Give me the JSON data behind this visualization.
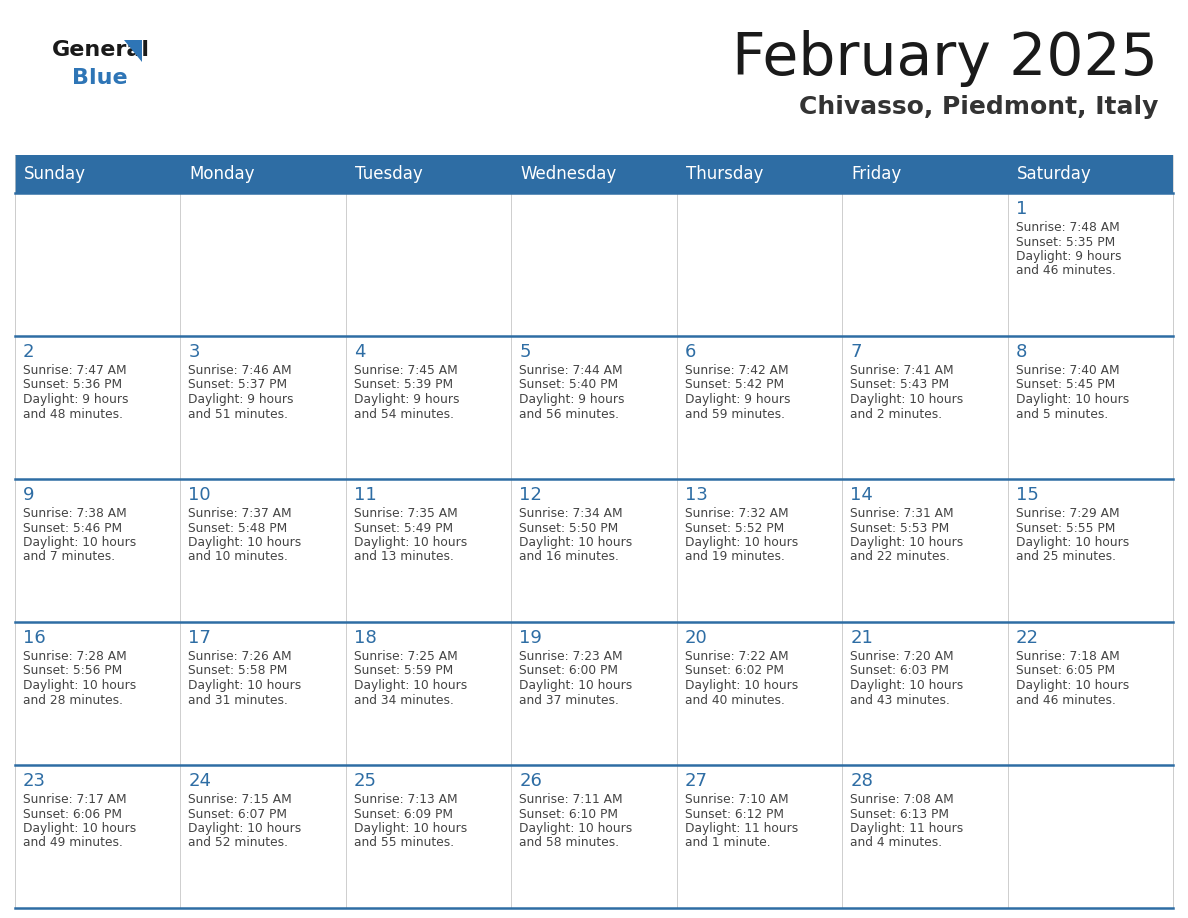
{
  "title": "February 2025",
  "subtitle": "Chivasso, Piedmont, Italy",
  "days_of_week": [
    "Sunday",
    "Monday",
    "Tuesday",
    "Wednesday",
    "Thursday",
    "Friday",
    "Saturday"
  ],
  "header_bg": "#2E6DA4",
  "header_text": "#FFFFFF",
  "cell_bg": "#F2F2F2",
  "border_color": "#2E6DA4",
  "day_num_color": "#2E6DA4",
  "cell_text_color": "#444444",
  "title_color": "#1a1a1a",
  "subtitle_color": "#333333",
  "weeks": [
    [
      {
        "day": null
      },
      {
        "day": null
      },
      {
        "day": null
      },
      {
        "day": null
      },
      {
        "day": null
      },
      {
        "day": null
      },
      {
        "day": 1,
        "sunrise": "7:48 AM",
        "sunset": "5:35 PM",
        "daylight": "9 hours and 46 minutes."
      }
    ],
    [
      {
        "day": 2,
        "sunrise": "7:47 AM",
        "sunset": "5:36 PM",
        "daylight": "9 hours and 48 minutes."
      },
      {
        "day": 3,
        "sunrise": "7:46 AM",
        "sunset": "5:37 PM",
        "daylight": "9 hours and 51 minutes."
      },
      {
        "day": 4,
        "sunrise": "7:45 AM",
        "sunset": "5:39 PM",
        "daylight": "9 hours and 54 minutes."
      },
      {
        "day": 5,
        "sunrise": "7:44 AM",
        "sunset": "5:40 PM",
        "daylight": "9 hours and 56 minutes."
      },
      {
        "day": 6,
        "sunrise": "7:42 AM",
        "sunset": "5:42 PM",
        "daylight": "9 hours and 59 minutes."
      },
      {
        "day": 7,
        "sunrise": "7:41 AM",
        "sunset": "5:43 PM",
        "daylight": "10 hours and 2 minutes."
      },
      {
        "day": 8,
        "sunrise": "7:40 AM",
        "sunset": "5:45 PM",
        "daylight": "10 hours and 5 minutes."
      }
    ],
    [
      {
        "day": 9,
        "sunrise": "7:38 AM",
        "sunset": "5:46 PM",
        "daylight": "10 hours and 7 minutes."
      },
      {
        "day": 10,
        "sunrise": "7:37 AM",
        "sunset": "5:48 PM",
        "daylight": "10 hours and 10 minutes."
      },
      {
        "day": 11,
        "sunrise": "7:35 AM",
        "sunset": "5:49 PM",
        "daylight": "10 hours and 13 minutes."
      },
      {
        "day": 12,
        "sunrise": "7:34 AM",
        "sunset": "5:50 PM",
        "daylight": "10 hours and 16 minutes."
      },
      {
        "day": 13,
        "sunrise": "7:32 AM",
        "sunset": "5:52 PM",
        "daylight": "10 hours and 19 minutes."
      },
      {
        "day": 14,
        "sunrise": "7:31 AM",
        "sunset": "5:53 PM",
        "daylight": "10 hours and 22 minutes."
      },
      {
        "day": 15,
        "sunrise": "7:29 AM",
        "sunset": "5:55 PM",
        "daylight": "10 hours and 25 minutes."
      }
    ],
    [
      {
        "day": 16,
        "sunrise": "7:28 AM",
        "sunset": "5:56 PM",
        "daylight": "10 hours and 28 minutes."
      },
      {
        "day": 17,
        "sunrise": "7:26 AM",
        "sunset": "5:58 PM",
        "daylight": "10 hours and 31 minutes."
      },
      {
        "day": 18,
        "sunrise": "7:25 AM",
        "sunset": "5:59 PM",
        "daylight": "10 hours and 34 minutes."
      },
      {
        "day": 19,
        "sunrise": "7:23 AM",
        "sunset": "6:00 PM",
        "daylight": "10 hours and 37 minutes."
      },
      {
        "day": 20,
        "sunrise": "7:22 AM",
        "sunset": "6:02 PM",
        "daylight": "10 hours and 40 minutes."
      },
      {
        "day": 21,
        "sunrise": "7:20 AM",
        "sunset": "6:03 PM",
        "daylight": "10 hours and 43 minutes."
      },
      {
        "day": 22,
        "sunrise": "7:18 AM",
        "sunset": "6:05 PM",
        "daylight": "10 hours and 46 minutes."
      }
    ],
    [
      {
        "day": 23,
        "sunrise": "7:17 AM",
        "sunset": "6:06 PM",
        "daylight": "10 hours and 49 minutes."
      },
      {
        "day": 24,
        "sunrise": "7:15 AM",
        "sunset": "6:07 PM",
        "daylight": "10 hours and 52 minutes."
      },
      {
        "day": 25,
        "sunrise": "7:13 AM",
        "sunset": "6:09 PM",
        "daylight": "10 hours and 55 minutes."
      },
      {
        "day": 26,
        "sunrise": "7:11 AM",
        "sunset": "6:10 PM",
        "daylight": "10 hours and 58 minutes."
      },
      {
        "day": 27,
        "sunrise": "7:10 AM",
        "sunset": "6:12 PM",
        "daylight": "11 hours and 1 minute."
      },
      {
        "day": 28,
        "sunrise": "7:08 AM",
        "sunset": "6:13 PM",
        "daylight": "11 hours and 4 minutes."
      },
      {
        "day": null
      }
    ]
  ]
}
